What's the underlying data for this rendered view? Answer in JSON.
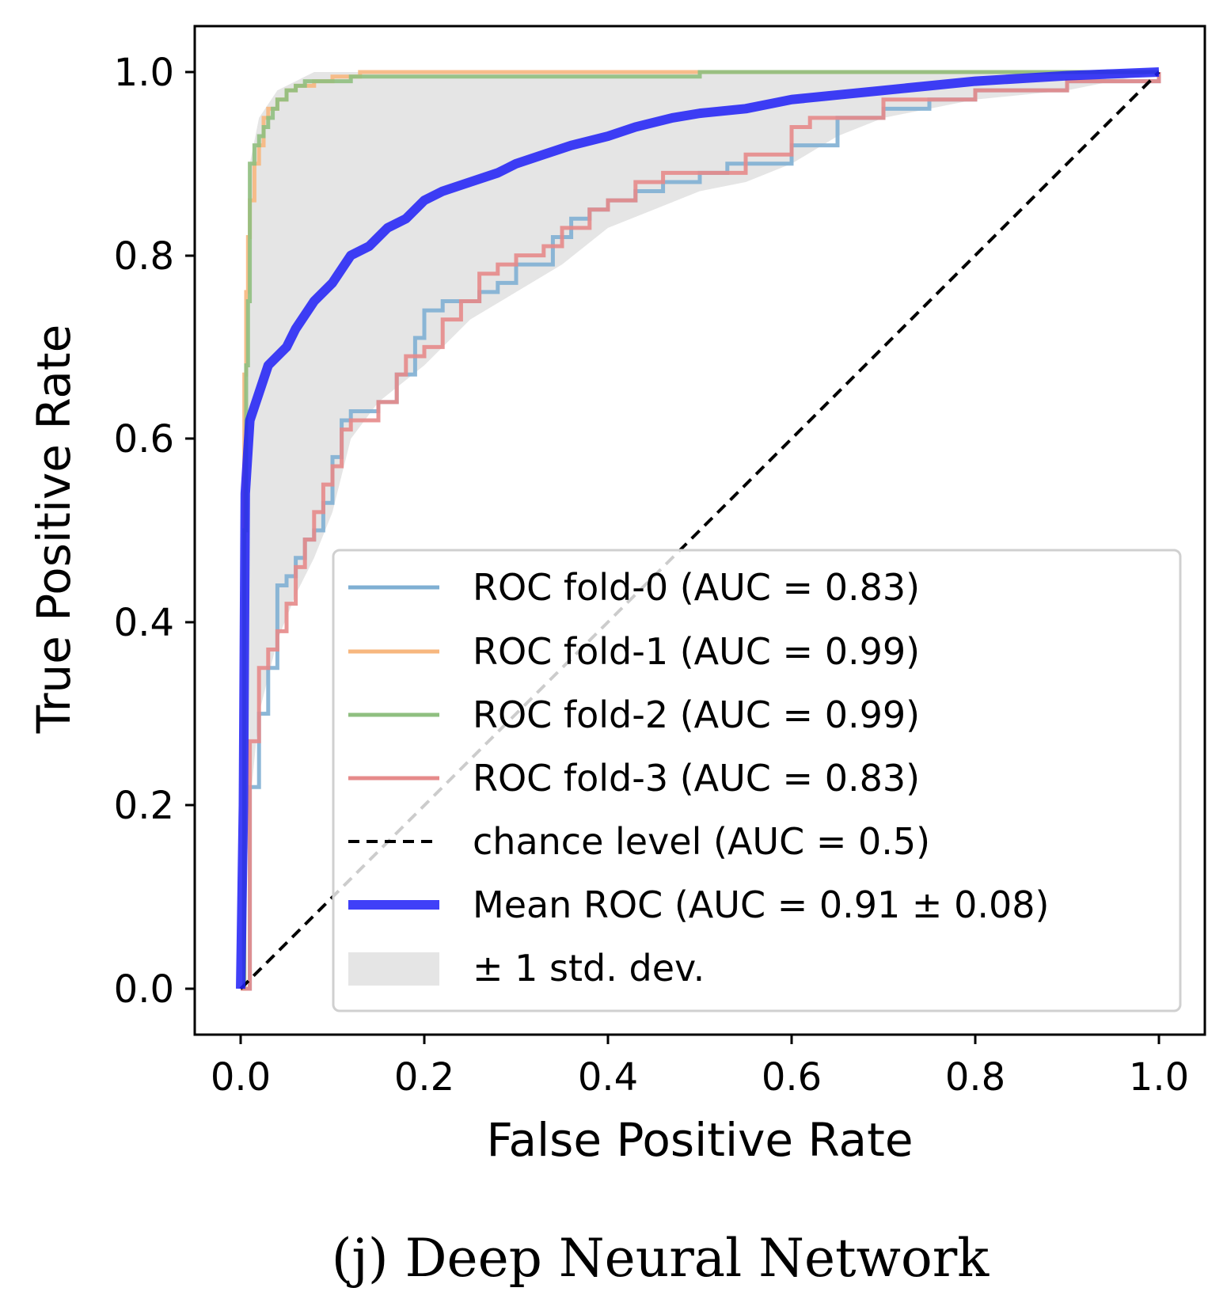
{
  "chart_data": {
    "type": "line",
    "caption": "(j) Deep Neural Network",
    "xlabel": "False Positive Rate",
    "ylabel": "True Positive Rate",
    "xlim": [
      -0.05,
      1.05
    ],
    "ylim": [
      -0.05,
      1.05
    ],
    "xticks": [
      "0.0",
      "0.2",
      "0.4",
      "0.6",
      "0.8",
      "1.0"
    ],
    "yticks": [
      "0.0",
      "0.2",
      "0.4",
      "0.6",
      "0.8",
      "1.0"
    ],
    "legend_position": "lower-right",
    "series": [
      {
        "name": "fold-0",
        "label": "ROC fold-0 (AUC = 0.83)",
        "color": "#7fafd3",
        "x": [
          0,
          0.01,
          0.02,
          0.03,
          0.04,
          0.05,
          0.06,
          0.07,
          0.08,
          0.09,
          0.1,
          0.11,
          0.12,
          0.13,
          0.15,
          0.17,
          0.19,
          0.2,
          0.22,
          0.24,
          0.26,
          0.28,
          0.3,
          0.32,
          0.34,
          0.36,
          0.38,
          0.4,
          0.43,
          0.46,
          0.48,
          0.5,
          0.53,
          0.56,
          0.6,
          0.65,
          0.7,
          0.75,
          0.8,
          0.85,
          0.9,
          1.0
        ],
        "y": [
          0,
          0.22,
          0.3,
          0.35,
          0.44,
          0.45,
          0.47,
          0.49,
          0.5,
          0.53,
          0.58,
          0.62,
          0.63,
          0.63,
          0.64,
          0.67,
          0.71,
          0.74,
          0.75,
          0.75,
          0.76,
          0.77,
          0.79,
          0.79,
          0.82,
          0.84,
          0.85,
          0.86,
          0.87,
          0.88,
          0.88,
          0.89,
          0.9,
          0.9,
          0.92,
          0.95,
          0.96,
          0.97,
          0.98,
          0.98,
          0.99,
          1.0
        ]
      },
      {
        "name": "fold-1",
        "label": "ROC fold-1 (AUC = 0.99)",
        "color": "#f7b77e",
        "x": [
          0,
          0.004,
          0.006,
          0.008,
          0.01,
          0.015,
          0.02,
          0.025,
          0.03,
          0.04,
          0.05,
          0.06,
          0.08,
          0.1,
          0.13,
          0.16,
          0.25,
          0.5,
          0.7,
          0.9,
          1.0
        ],
        "y": [
          0,
          0.67,
          0.76,
          0.82,
          0.86,
          0.9,
          0.92,
          0.95,
          0.96,
          0.97,
          0.98,
          0.985,
          0.99,
          0.995,
          1.0,
          1.0,
          1.0,
          1.0,
          1.0,
          1.0,
          1.0
        ]
      },
      {
        "name": "fold-2",
        "label": "ROC fold-2 (AUC = 0.99)",
        "color": "#8fbf80",
        "x": [
          0,
          0.004,
          0.006,
          0.008,
          0.01,
          0.015,
          0.02,
          0.025,
          0.03,
          0.035,
          0.04,
          0.05,
          0.06,
          0.07,
          0.08,
          0.1,
          0.12,
          0.16,
          0.25,
          0.5,
          0.8,
          1.0
        ],
        "y": [
          0,
          0.5,
          0.68,
          0.75,
          0.9,
          0.92,
          0.93,
          0.94,
          0.95,
          0.96,
          0.97,
          0.98,
          0.985,
          0.99,
          0.99,
          0.99,
          0.995,
          0.995,
          0.995,
          1.0,
          1.0,
          1.0
        ]
      },
      {
        "name": "fold-3",
        "label": "ROC fold-3 (AUC = 0.83)",
        "color": "#e68a8a",
        "x": [
          0,
          0.01,
          0.02,
          0.03,
          0.04,
          0.05,
          0.06,
          0.07,
          0.08,
          0.09,
          0.1,
          0.11,
          0.12,
          0.13,
          0.15,
          0.17,
          0.18,
          0.2,
          0.22,
          0.24,
          0.26,
          0.28,
          0.3,
          0.33,
          0.35,
          0.38,
          0.4,
          0.43,
          0.46,
          0.5,
          0.55,
          0.6,
          0.62,
          0.7,
          0.8,
          0.9,
          1.0
        ],
        "y": [
          0,
          0.27,
          0.35,
          0.37,
          0.39,
          0.42,
          0.46,
          0.49,
          0.52,
          0.55,
          0.57,
          0.61,
          0.62,
          0.62,
          0.64,
          0.67,
          0.69,
          0.7,
          0.73,
          0.75,
          0.78,
          0.79,
          0.8,
          0.81,
          0.83,
          0.85,
          0.86,
          0.88,
          0.89,
          0.89,
          0.91,
          0.94,
          0.95,
          0.97,
          0.98,
          0.99,
          1.0
        ]
      },
      {
        "name": "chance",
        "label": "chance level (AUC = 0.5)",
        "color": "#000000",
        "x": [
          0,
          1
        ],
        "y": [
          0,
          1
        ]
      },
      {
        "name": "mean",
        "label": "Mean ROC (AUC = 0.91 ± 0.08)",
        "color": "#1f1ff7",
        "x": [
          0,
          0.003,
          0.005,
          0.01,
          0.02,
          0.03,
          0.05,
          0.06,
          0.08,
          0.1,
          0.12,
          0.14,
          0.16,
          0.18,
          0.2,
          0.22,
          0.25,
          0.28,
          0.3,
          0.33,
          0.36,
          0.4,
          0.43,
          0.47,
          0.5,
          0.55,
          0.6,
          0.65,
          0.7,
          0.75,
          0.8,
          0.85,
          0.9,
          0.95,
          1.0
        ],
        "y": [
          0,
          0.2,
          0.54,
          0.62,
          0.65,
          0.68,
          0.7,
          0.72,
          0.75,
          0.77,
          0.8,
          0.81,
          0.83,
          0.84,
          0.86,
          0.87,
          0.88,
          0.89,
          0.9,
          0.91,
          0.92,
          0.93,
          0.94,
          0.95,
          0.955,
          0.96,
          0.97,
          0.975,
          0.98,
          0.985,
          0.99,
          0.993,
          0.996,
          0.998,
          1.0
        ]
      }
    ],
    "std_band": {
      "label": "± 1 std. dev.",
      "color": "#e5e5e5",
      "x": [
        0,
        0.005,
        0.01,
        0.02,
        0.04,
        0.06,
        0.08,
        0.1,
        0.12,
        0.15,
        0.2,
        0.25,
        0.3,
        0.35,
        0.4,
        0.45,
        0.5,
        0.55,
        0.6,
        0.65,
        0.7,
        0.8,
        0.9,
        1.0
      ],
      "upper": [
        0,
        0.55,
        0.9,
        0.95,
        0.98,
        0.99,
        1.0,
        1.0,
        1.0,
        1.0,
        1.0,
        1.0,
        1.0,
        1.0,
        1.0,
        1.0,
        1.0,
        1.0,
        1.0,
        1.0,
        1.0,
        1.0,
        1.0,
        1.0
      ],
      "lower": [
        0,
        0.1,
        0.2,
        0.3,
        0.38,
        0.43,
        0.47,
        0.52,
        0.6,
        0.64,
        0.68,
        0.73,
        0.76,
        0.79,
        0.83,
        0.85,
        0.87,
        0.88,
        0.9,
        0.93,
        0.95,
        0.97,
        0.98,
        1.0
      ]
    }
  }
}
